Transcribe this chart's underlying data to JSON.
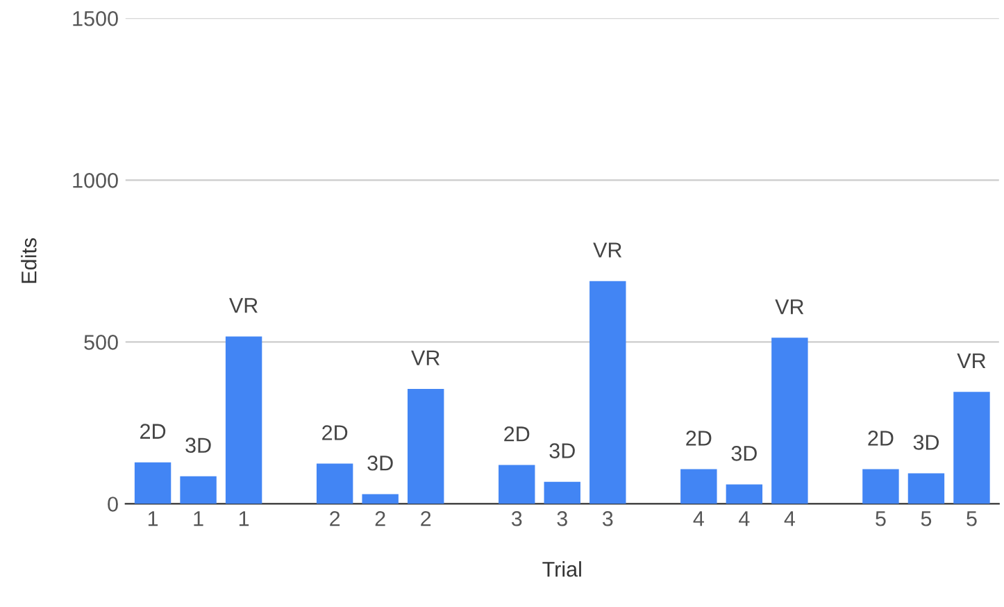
{
  "chart_data": {
    "type": "bar",
    "xlabel": "Trial",
    "ylabel": "Edits",
    "categories": [
      "1",
      "2",
      "3",
      "4",
      "5"
    ],
    "series": [
      {
        "name": "2D",
        "color": "#4285f4",
        "values": [
          128,
          124,
          120,
          107,
          107
        ]
      },
      {
        "name": "3D",
        "color": "#4285f4",
        "values": [
          85,
          30,
          68,
          60,
          94
        ]
      },
      {
        "name": "VR",
        "color": "#4285f4",
        "values": [
          517,
          355,
          688,
          513,
          346
        ]
      }
    ],
    "ylim": [
      0,
      1500
    ],
    "yticks": [
      0,
      500,
      1000,
      1500
    ],
    "grid": "y"
  }
}
